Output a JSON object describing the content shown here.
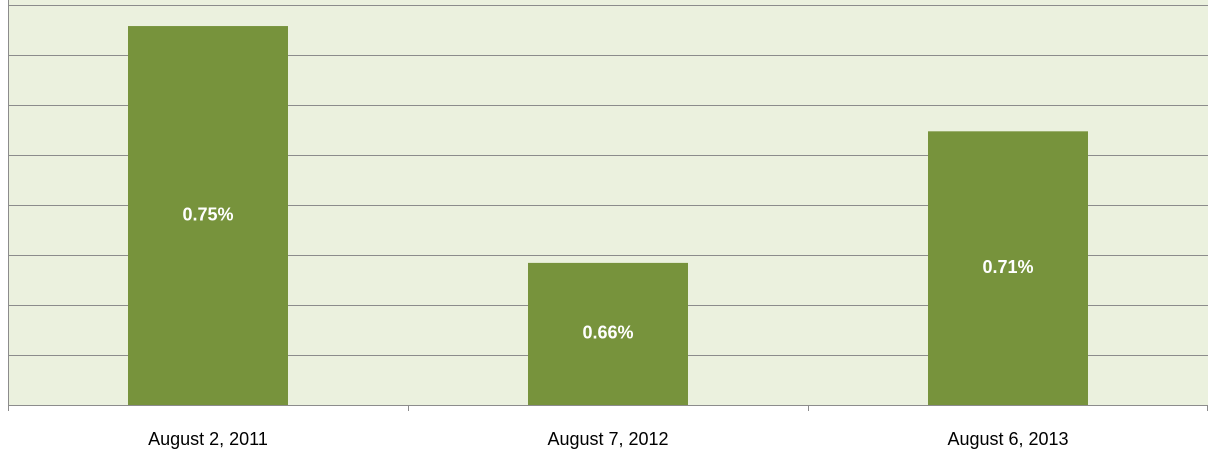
{
  "chart_data": {
    "type": "bar",
    "categories": [
      "August 2, 2011",
      "August 7, 2012",
      "August 6, 2013"
    ],
    "values": [
      0.75,
      0.66,
      0.71
    ],
    "value_labels": [
      "0.75%",
      "0.66%",
      "0.71%"
    ],
    "color": "#77933c",
    "ylim": [
      0.606,
      0.758
    ],
    "yticks": [
      0.606,
      0.625,
      0.644,
      0.663,
      0.682,
      0.701,
      0.72,
      0.739,
      0.758
    ],
    "grid": true
  }
}
